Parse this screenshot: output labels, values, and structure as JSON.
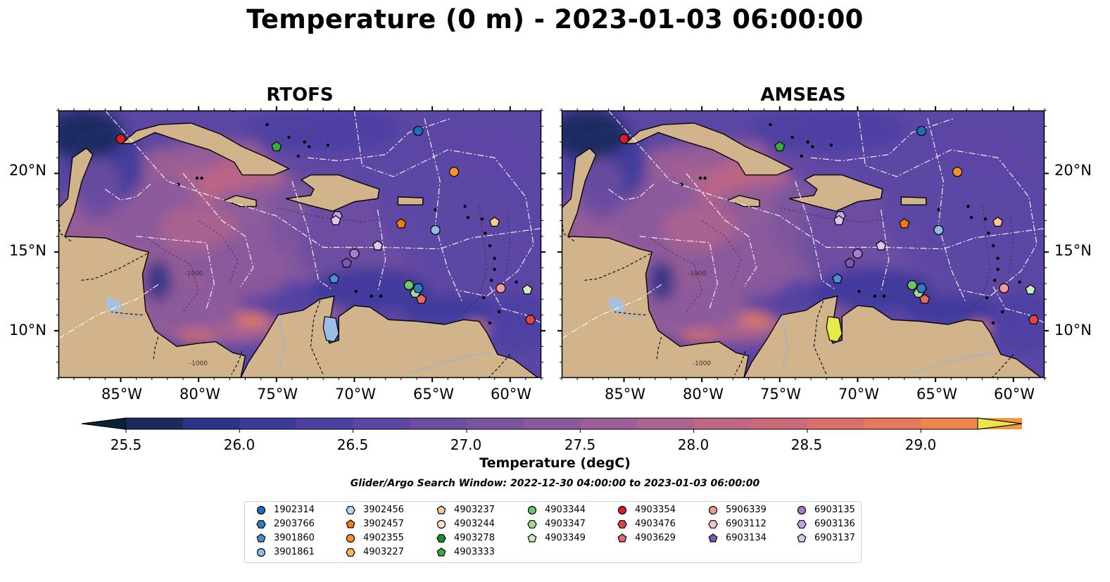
{
  "title": "Temperature (0 m) - 2023-01-03 06:00:00",
  "panels": [
    {
      "title": "RTOFS"
    },
    {
      "title": "AMSEAS"
    }
  ],
  "lon_ticks": [
    "85°W",
    "80°W",
    "75°W",
    "70°W",
    "65°W",
    "60°W"
  ],
  "lat_ticks": [
    "20°N",
    "15°N",
    "10°N"
  ],
  "map_extent": {
    "lon": [
      -89,
      -58
    ],
    "lat": [
      7,
      24
    ]
  },
  "bathymetry_contour_label": "-1000",
  "colorbar": {
    "label": "Temperature (degC)",
    "ticks": [
      "25.5",
      "26.0",
      "26.5",
      "27.0",
      "27.5",
      "28.0",
      "28.5",
      "29.0"
    ],
    "range": [
      25.5,
      29.0
    ],
    "step": 0.25,
    "extend": "both",
    "colors": [
      "#072337",
      "#1b2a5c",
      "#2c3287",
      "#3d3a9c",
      "#4d40a3",
      "#5c46a4",
      "#6b4da2",
      "#7a549f",
      "#8a5a9c",
      "#9b5e96",
      "#ac638e",
      "#bd6685",
      "#cc6a79",
      "#da6f6b",
      "#e6785c",
      "#f0854c",
      "#f7943c",
      "#fba53b",
      "#fbb744",
      "#f7cc4e",
      "#e9e64c"
    ]
  },
  "search_window": "Glider/Argo Search Window: 2022-12-30 04:00:00 to 2023-01-03 06:00:00",
  "legend": [
    {
      "id": "1902314",
      "marker": "circle",
      "color": "#1f6fb8"
    },
    {
      "id": "2903766",
      "marker": "hexagon",
      "color": "#2d7cc4"
    },
    {
      "id": "3901860",
      "marker": "pentagon",
      "color": "#4a8fd6"
    },
    {
      "id": "3901861",
      "marker": "circle",
      "color": "#8cbce8"
    },
    {
      "id": "3902456",
      "marker": "hexagon",
      "color": "#b8d6f1"
    },
    {
      "id": "3902457",
      "marker": "pentagon",
      "color": "#f07c10"
    },
    {
      "id": "4902355",
      "marker": "circle",
      "color": "#f8902a"
    },
    {
      "id": "4903227",
      "marker": "hexagon",
      "color": "#fbb266"
    },
    {
      "id": "4903237",
      "marker": "pentagon",
      "color": "#fcc996"
    },
    {
      "id": "4903244",
      "marker": "circle",
      "color": "#fde0c6"
    },
    {
      "id": "4903278",
      "marker": "hexagon",
      "color": "#1e8a2d"
    },
    {
      "id": "4903333",
      "marker": "pentagon",
      "color": "#3aaa3a"
    },
    {
      "id": "4903344",
      "marker": "circle",
      "color": "#6cc66c"
    },
    {
      "id": "4903347",
      "marker": "hexagon",
      "color": "#9edc94"
    },
    {
      "id": "4903349",
      "marker": "pentagon",
      "color": "#c7efbe"
    },
    {
      "id": "4903354",
      "marker": "circle",
      "color": "#d42020"
    },
    {
      "id": "4903476",
      "marker": "hexagon",
      "color": "#dd4444"
    },
    {
      "id": "4903629",
      "marker": "pentagon",
      "color": "#e66868"
    },
    {
      "id": "5906339",
      "marker": "circle",
      "color": "#f29a9a"
    },
    {
      "id": "6903112",
      "marker": "hexagon",
      "color": "#f8c4c4"
    },
    {
      "id": "6903134",
      "marker": "pentagon",
      "color": "#7d55b5"
    },
    {
      "id": "6903135",
      "marker": "circle",
      "color": "#a47fd0"
    },
    {
      "id": "6903136",
      "marker": "hexagon",
      "color": "#c3a6e0"
    },
    {
      "id": "6903137",
      "marker": "pentagon",
      "color": "#dcc8ef"
    }
  ],
  "floats": [
    {
      "id": "4903354",
      "lon": -85.0,
      "lat": 22.2
    },
    {
      "id": "1902314",
      "lon": -65.9,
      "lat": 22.7
    },
    {
      "id": "4903333",
      "lon": -75.0,
      "lat": 21.7
    },
    {
      "id": "4902355",
      "lon": -63.6,
      "lat": 20.1
    },
    {
      "id": "3902457",
      "lon": -67.0,
      "lat": 16.8
    },
    {
      "id": "3901861",
      "lon": -64.8,
      "lat": 16.4
    },
    {
      "id": "6903136",
      "lon": -71.1,
      "lat": 17.3
    },
    {
      "id": "6903137",
      "lon": -71.2,
      "lat": 17.0
    },
    {
      "id": "6903137",
      "lon": -68.5,
      "lat": 15.4
    },
    {
      "id": "6903135",
      "lon": -70.0,
      "lat": 14.9
    },
    {
      "id": "6903134",
      "lon": -70.5,
      "lat": 14.3
    },
    {
      "id": "3901860",
      "lon": -71.3,
      "lat": 13.3
    },
    {
      "id": "4903344",
      "lon": -66.5,
      "lat": 12.9
    },
    {
      "id": "4903347",
      "lon": -66.1,
      "lat": 12.4
    },
    {
      "id": "2903766",
      "lon": -65.9,
      "lat": 12.7
    },
    {
      "id": "4903629",
      "lon": -65.7,
      "lat": 12.0
    },
    {
      "id": "5906339",
      "lon": -60.6,
      "lat": 12.7
    },
    {
      "id": "4903349",
      "lon": -58.9,
      "lat": 12.6
    },
    {
      "id": "4903476",
      "lon": -58.7,
      "lat": 10.7
    },
    {
      "id": "4903237",
      "lon": -61.0,
      "lat": 16.9
    }
  ]
}
